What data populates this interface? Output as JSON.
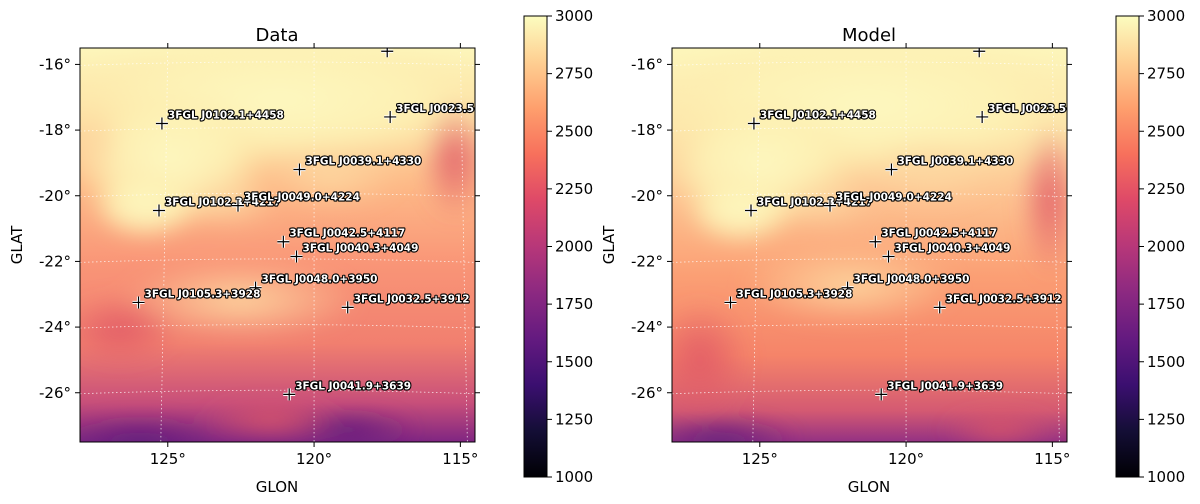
{
  "chart_data": [
    {
      "type": "heatmap",
      "title": "Data",
      "xlabel": "GLON",
      "ylabel": "GLAT",
      "xlim": [
        128,
        114.5
      ],
      "ylim": [
        -27.5,
        -15.5
      ],
      "x_ticks": [
        {
          "value": 125,
          "label": "125°"
        },
        {
          "value": 120,
          "label": "120°"
        },
        {
          "value": 115,
          "label": "115°"
        }
      ],
      "y_ticks": [
        {
          "value": -16,
          "label": "-16°"
        },
        {
          "value": -18,
          "label": "-18°"
        },
        {
          "value": -20,
          "label": "-20°"
        },
        {
          "value": -22,
          "label": "-22°"
        },
        {
          "value": -24,
          "label": "-24°"
        },
        {
          "value": -26,
          "label": "-26°"
        }
      ],
      "colorbar": {
        "min": 1000,
        "max": 3000,
        "ticks": [
          1000,
          1250,
          1500,
          1750,
          2000,
          2250,
          2500,
          2750,
          3000
        ],
        "colormap": "magma"
      },
      "sources": [
        {
          "name": "3FGL J0102.1+4458",
          "glon": 125.2,
          "glat": -17.8
        },
        {
          "name": "3FGL J0023.5+",
          "glon": 117.4,
          "glat": -17.6
        },
        {
          "name": "3FGL J0039.1+4330",
          "glon": 120.5,
          "glat": -19.2
        },
        {
          "name": "3FGL J0102.3+4217",
          "glon": 125.3,
          "glat": -20.45
        },
        {
          "name": "3FGL J0049.0+4224",
          "glon": 122.6,
          "glat": -20.3
        },
        {
          "name": "3FGL J0042.5+4117",
          "glon": 121.05,
          "glat": -21.4
        },
        {
          "name": "3FGL J0040.3+4049",
          "glon": 120.6,
          "glat": -21.85
        },
        {
          "name": "3FGL J0048.0+3950",
          "glon": 122.0,
          "glat": -22.8
        },
        {
          "name": "3FGL J0105.3+3928",
          "glon": 126.0,
          "glat": -23.25
        },
        {
          "name": "3FGL J0032.5+3912",
          "glon": 118.85,
          "glat": -23.4
        },
        {
          "name": "3FGL J0041.9+3639",
          "glon": 120.85,
          "glat": -26.05
        },
        {
          "name": "",
          "glon": 117.5,
          "glat": -15.6
        }
      ]
    },
    {
      "type": "heatmap",
      "title": "Model",
      "xlabel": "GLON",
      "ylabel": "GLAT",
      "xlim": [
        128,
        114.5
      ],
      "ylim": [
        -27.5,
        -15.5
      ],
      "x_ticks": [
        {
          "value": 125,
          "label": "125°"
        },
        {
          "value": 120,
          "label": "120°"
        },
        {
          "value": 115,
          "label": "115°"
        }
      ],
      "y_ticks": [
        {
          "value": -16,
          "label": "-16°"
        },
        {
          "value": -18,
          "label": "-18°"
        },
        {
          "value": -20,
          "label": "-20°"
        },
        {
          "value": -22,
          "label": "-22°"
        },
        {
          "value": -24,
          "label": "-24°"
        },
        {
          "value": -26,
          "label": "-26°"
        }
      ],
      "colorbar": {
        "min": 1000,
        "max": 3000,
        "ticks": [
          1000,
          1250,
          1500,
          1750,
          2000,
          2250,
          2500,
          2750,
          3000
        ],
        "colormap": "magma"
      },
      "sources": [
        {
          "name": "3FGL J0102.1+4458",
          "glon": 125.2,
          "glat": -17.8
        },
        {
          "name": "3FGL J0023.5+",
          "glon": 117.4,
          "glat": -17.6
        },
        {
          "name": "3FGL J0039.1+4330",
          "glon": 120.5,
          "glat": -19.2
        },
        {
          "name": "3FGL J0102.3+4217",
          "glon": 125.3,
          "glat": -20.45
        },
        {
          "name": "3FGL J0049.0+4224",
          "glon": 122.6,
          "glat": -20.3
        },
        {
          "name": "3FGL J0042.5+4117",
          "glon": 121.05,
          "glat": -21.4
        },
        {
          "name": "3FGL J0040.3+4049",
          "glon": 120.6,
          "glat": -21.85
        },
        {
          "name": "3FGL J0048.0+3950",
          "glon": 122.0,
          "glat": -22.8
        },
        {
          "name": "3FGL J0105.3+3928",
          "glon": 126.0,
          "glat": -23.25
        },
        {
          "name": "3FGL J0032.5+3912",
          "glon": 118.85,
          "glat": -23.4
        },
        {
          "name": "3FGL J0041.9+3639",
          "glon": 120.85,
          "glat": -26.05
        },
        {
          "name": "",
          "glon": 117.5,
          "glat": -15.6
        }
      ]
    }
  ]
}
